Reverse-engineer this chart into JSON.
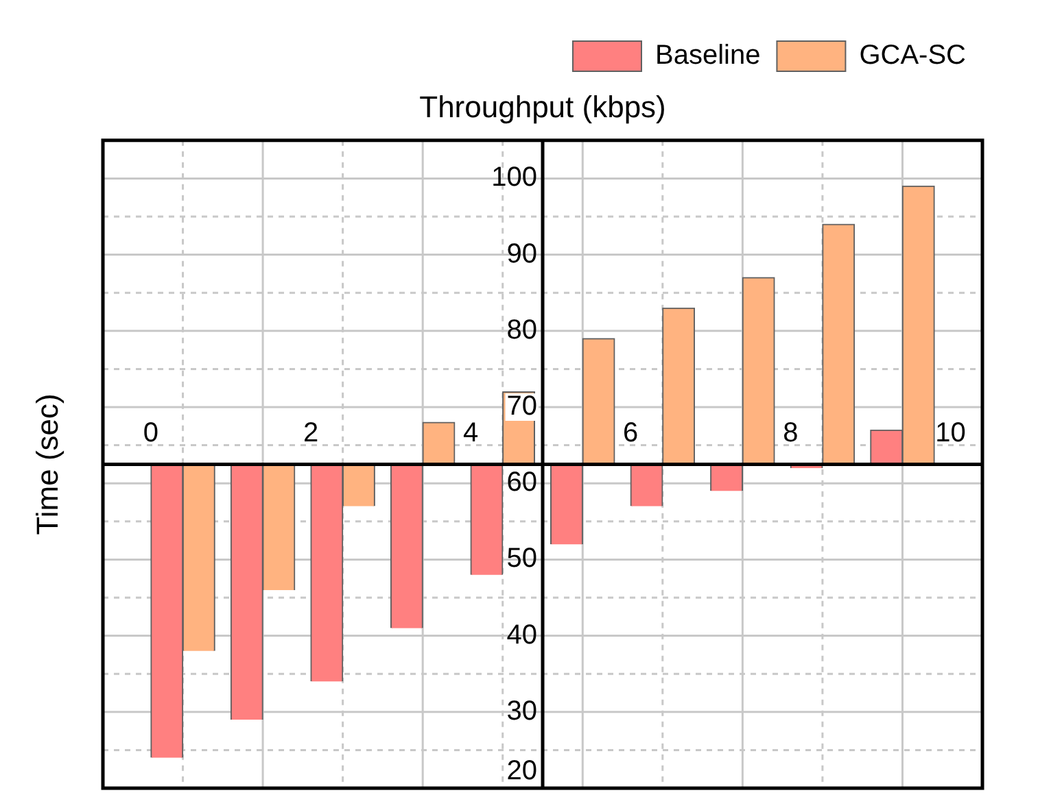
{
  "chart_data": {
    "type": "bar",
    "xlabel": "Throughput (kbps)",
    "ylabel": "Time (sec)",
    "x": [
      0.4,
      1.4,
      2.4,
      3.4,
      4.4,
      5.4,
      6.4,
      7.4,
      8.4,
      9.4
    ],
    "series": [
      {
        "name": "Baseline",
        "color": "#ff8080",
        "base": [
          62.5,
          62.5,
          62.5,
          62.5,
          62.5,
          62.5,
          62.5,
          62.5,
          62.5,
          62.5
        ],
        "values": [
          -38.5,
          -33.5,
          -28.5,
          -21.5,
          -14.5,
          -10.5,
          -5.5,
          -3.5,
          -0.5,
          4.5
        ]
      },
      {
        "name": "GCA-SC",
        "color": "#ffb380",
        "base": [
          62.5,
          62.5,
          62.5,
          62.5,
          62.5,
          62.5,
          62.5,
          62.5,
          62.5,
          62.5
        ],
        "values": [
          -24.5,
          -16.5,
          -5.5,
          5.5,
          9.5,
          16.5,
          20.5,
          24.5,
          31.5,
          36.5
        ]
      }
    ],
    "xlim": [
      -0.6,
      10.4
    ],
    "xticks": [
      0,
      {
        "value": 0.4,
        "label": null
      },
      {
        "value": 1.4,
        "label": null
      },
      2,
      {
        "value": 2.4,
        "label": null
      },
      {
        "value": 3.4,
        "label": null
      },
      4,
      {
        "value": 4.4,
        "label": null
      },
      {
        "value": 5.4,
        "label": null
      },
      6,
      {
        "value": 6.4,
        "label": null
      },
      {
        "value": 7.4,
        "label": null
      },
      8,
      {
        "value": 8.4,
        "label": null
      },
      {
        "value": 9.4,
        "label": null
      },
      10
    ],
    "ylim": [
      20,
      105
    ],
    "yticks": [
      20,
      {
        "value": 25,
        "label": null
      },
      30,
      {
        "value": 35,
        "label": null
      },
      40,
      {
        "value": 45,
        "label": null
      },
      50,
      {
        "value": 55,
        "label": null
      },
      60,
      {
        "value": 65,
        "label": null
      },
      70,
      {
        "value": 75,
        "label": null
      },
      80,
      {
        "value": 85,
        "label": null
      },
      90,
      {
        "value": 95,
        "label": null
      },
      100,
      {
        "value": 105,
        "label": null
      }
    ],
    "grid": true,
    "legend": "top right"
  }
}
